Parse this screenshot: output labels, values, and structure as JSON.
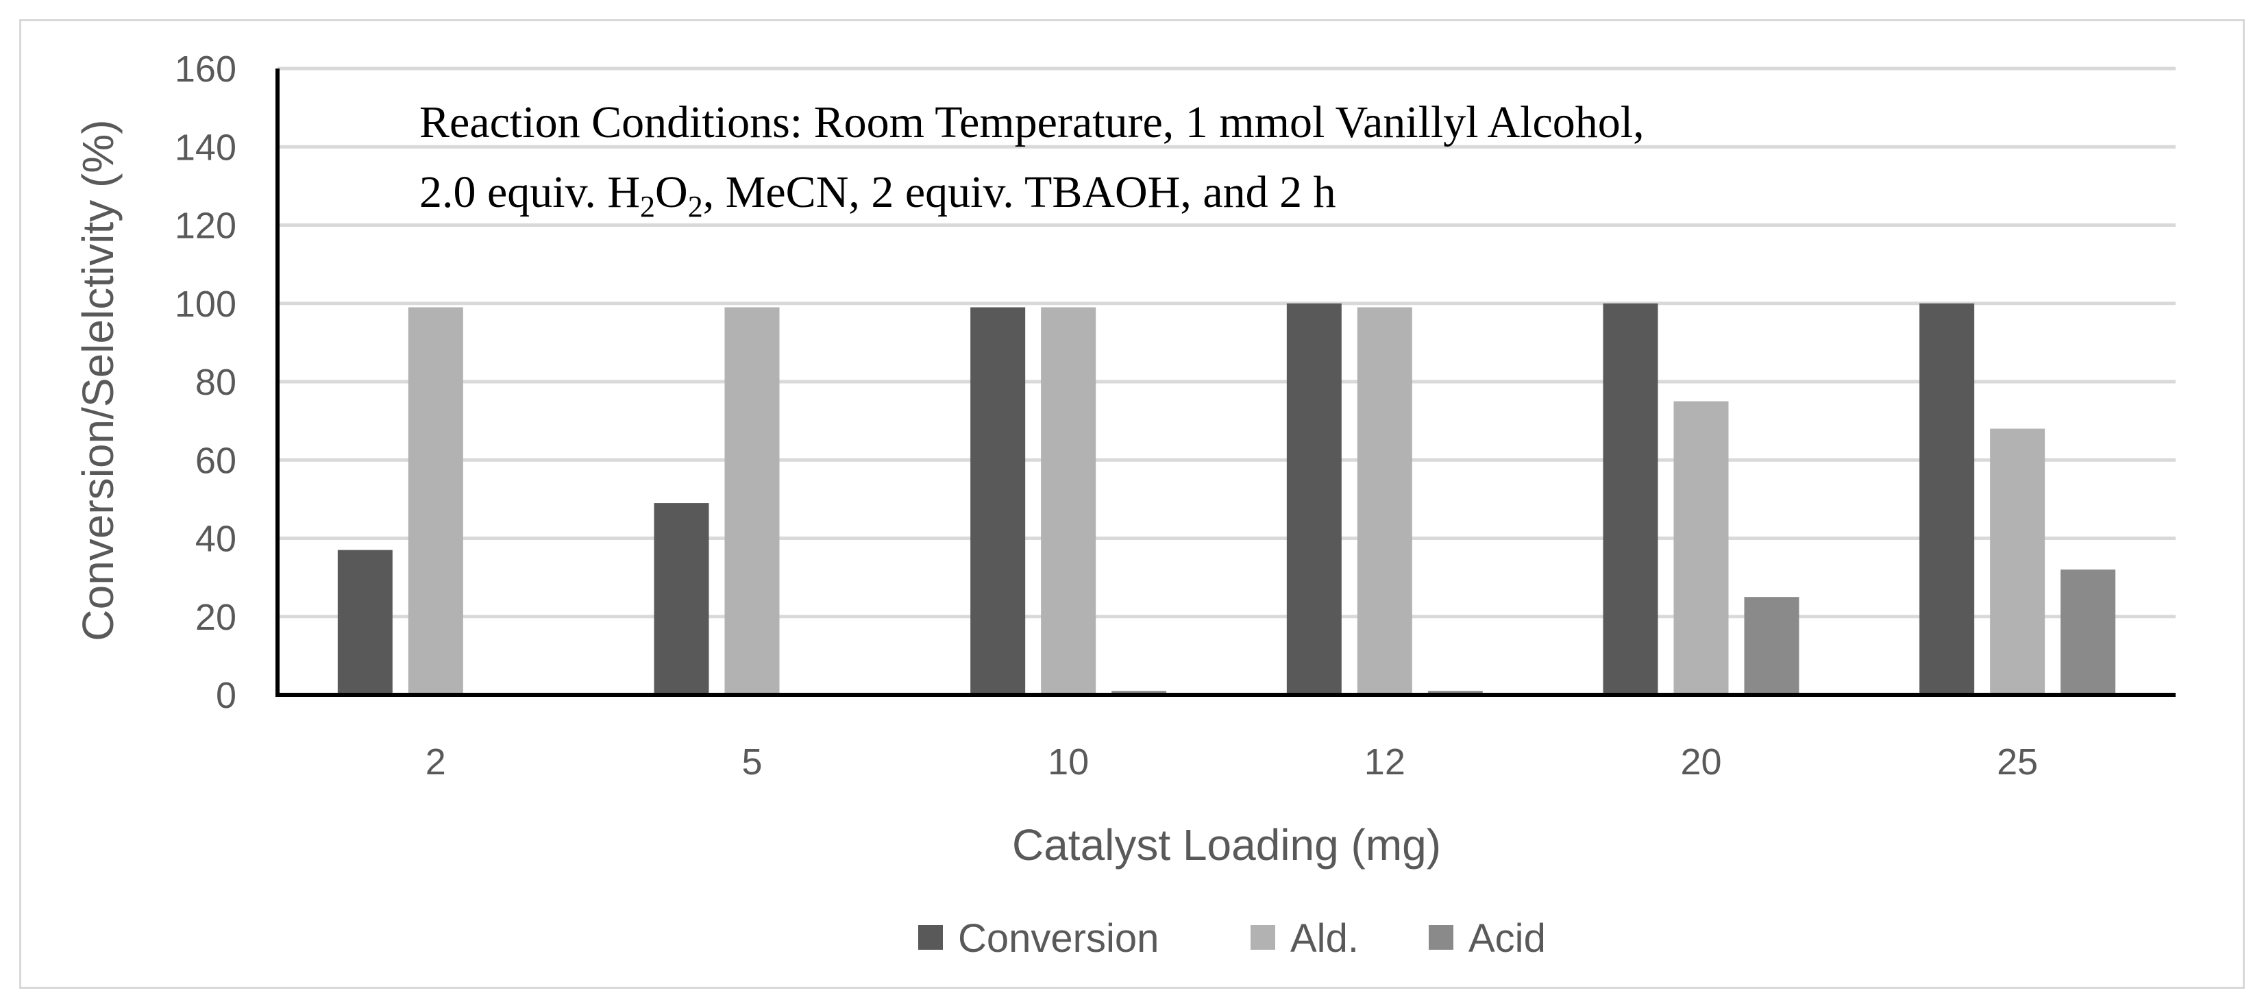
{
  "chart_data": {
    "type": "bar",
    "categories": [
      "2",
      "5",
      "10",
      "12",
      "20",
      "25"
    ],
    "series": [
      {
        "name": "Conversion",
        "values": [
          37,
          49,
          99,
          100,
          100,
          100
        ],
        "color": "#595959"
      },
      {
        "name": "Ald.",
        "values": [
          99,
          99,
          99,
          99,
          75,
          68
        ],
        "color": "#b2b2b2"
      },
      {
        "name": "Acid",
        "values": [
          0,
          0,
          1,
          1,
          25,
          32
        ],
        "color": "#8a8a8a"
      }
    ],
    "xlabel": "Catalyst Loading (mg)",
    "ylabel": "Conversion/Selelctivity (%)",
    "ylim": [
      0,
      160
    ],
    "yticks": [
      0,
      20,
      40,
      60,
      80,
      100,
      120,
      140,
      160
    ],
    "grid": true,
    "legend_position": "bottom",
    "annotation": {
      "line1": "Reaction Conditions: Room Temperature,  1 mmol Vanillyl Alcohol,",
      "line2_a": "2.0 equiv. H",
      "line2_sub1": "2",
      "line2_b": "O",
      "line2_sub2": "2",
      "line2_c": ", MeCN, 2 equiv. TBAOH, and 2 h"
    }
  }
}
